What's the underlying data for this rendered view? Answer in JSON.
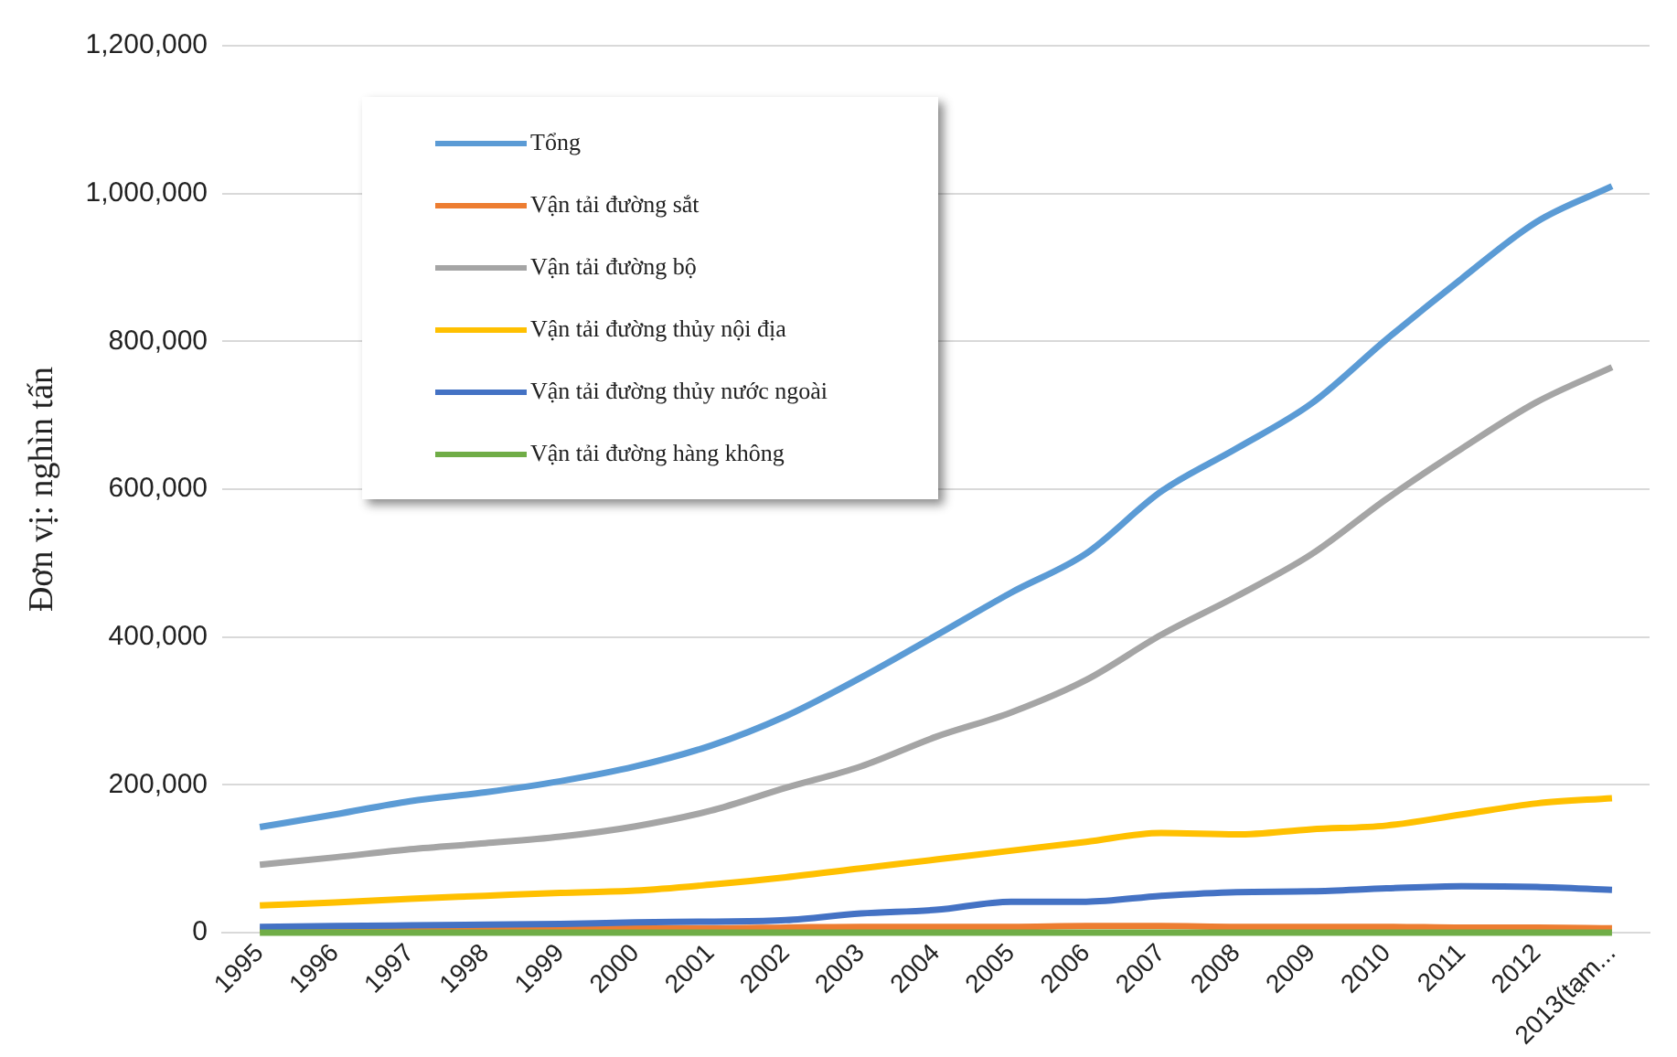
{
  "chart_data": {
    "type": "line",
    "ylabel": "Đơn vị: nghìn tấn",
    "categories": [
      "1995",
      "1996",
      "1997",
      "1998",
      "1999",
      "2000",
      "2001",
      "2002",
      "2003",
      "2004",
      "2005",
      "2006",
      "2007",
      "2008",
      "2009",
      "2010",
      "2011",
      "2012",
      "2013(tạm..."
    ],
    "series": [
      {
        "name": "Tổng",
        "color": "#5b9bd5",
        "values": [
          143000,
          160000,
          178000,
          190000,
          205000,
          225000,
          253000,
          293000,
          345000,
          402000,
          460000,
          513000,
          597000,
          655000,
          716000,
          803000,
          885000,
          962000,
          1010000
        ]
      },
      {
        "name": "Vận tải đường sắt",
        "color": "#ed7d31",
        "values": [
          4000,
          5000,
          5000,
          5000,
          5000,
          6000,
          6000,
          7000,
          8000,
          8000,
          8000,
          9000,
          9000,
          8000,
          8000,
          8000,
          7000,
          7000,
          6000
        ]
      },
      {
        "name": "Vận tải đường bộ",
        "color": "#a5a5a5",
        "values": [
          92000,
          102000,
          113000,
          121000,
          130000,
          144000,
          165000,
          196000,
          225000,
          265000,
          298000,
          342000,
          403000,
          455000,
          512000,
          587000,
          655000,
          718000,
          765000
        ]
      },
      {
        "name": "Vận tải đường thủy nội địa",
        "color": "#ffc000",
        "values": [
          37000,
          41000,
          46000,
          50000,
          54000,
          57000,
          65000,
          75000,
          87000,
          99000,
          111000,
          123000,
          135000,
          133000,
          140000,
          145000,
          160000,
          175000,
          182000
        ]
      },
      {
        "name": "Vận tải đường thủy nước ngoài",
        "color": "#4472c4",
        "values": [
          8000,
          9000,
          10000,
          11000,
          12000,
          14000,
          15000,
          17000,
          26000,
          31000,
          42000,
          42000,
          50000,
          55000,
          56000,
          60000,
          63000,
          62000,
          58000
        ]
      },
      {
        "name": "Vận tải đường hàng không",
        "color": "#70ad47",
        "values": [
          0,
          0,
          0,
          0,
          0,
          0,
          0,
          0,
          0,
          0,
          0,
          0,
          0,
          0,
          0,
          0,
          0,
          0,
          0
        ]
      }
    ],
    "ylim": [
      0,
      1200000
    ],
    "yticks": [
      0,
      {
        "value": 200000,
        "label": "200,000"
      },
      {
        "value": 400000,
        "label": "400,000"
      },
      {
        "value": 600000,
        "label": "600,000"
      },
      {
        "value": 800000,
        "label": "800,000"
      },
      {
        "value": 1000000,
        "label": "1,000,000"
      },
      {
        "value": 1200000,
        "label": "1,200,000"
      }
    ],
    "grid": "y",
    "legend": "top left",
    "marker": "none",
    "line_style": "solid"
  }
}
